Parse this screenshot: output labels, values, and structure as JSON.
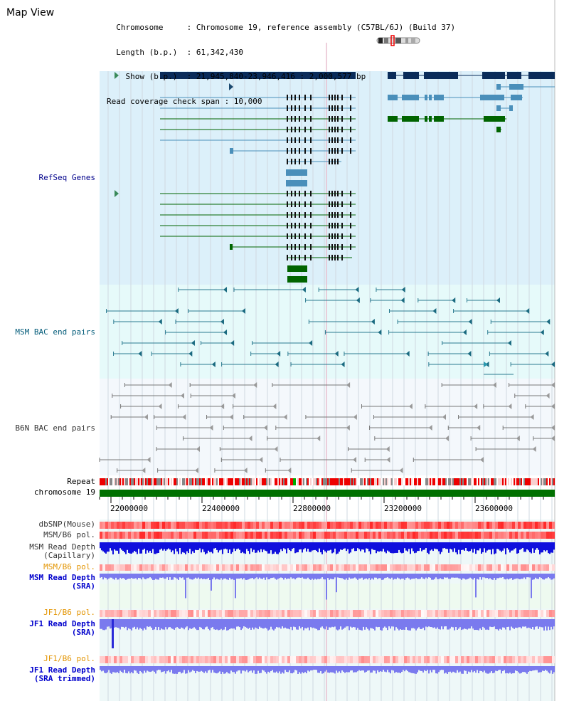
{
  "header": {
    "title": "Map View",
    "info_lines": [
      "  Chromosome     : Chromosome 19, reference assembly (C57BL/6J) (Build 37)",
      "  Length (b.p.)  : 61,342,430",
      "    Show (b.p.)  : 21,945,840-23,946,416 : 2,000,577 bp",
      "Read coverage check span : 10,000"
    ]
  },
  "tracks": {
    "refseq": "RefSeq Genes",
    "msm_bac": "MSM BAC end pairs",
    "b6n_bac": "B6N BAC end pairs",
    "repeat": "Repeat",
    "chromosome": "chromosome 19",
    "dbsnp": "dbSNP(Mouse)",
    "msm_b6_pol_1": "MSM/B6 pol.",
    "msm_depth_cap_1": "MSM Read Depth",
    "msm_depth_cap_2": "(Capillary)",
    "msm_b6_pol_2": "MSM/B6 pol.",
    "msm_depth_sra_1": "MSM Read Depth",
    "msm_depth_sra_2": "(SRA)",
    "jf1_b6_pol_1": "JF1/B6 pol.",
    "jf1_depth_sra_1": "JF1 Read Depth",
    "jf1_depth_sra_2": "(SRA)",
    "jf1_b6_pol_2": "JF1/B6 pol.",
    "jf1_depth_trim_1": "JF1 Read Depth",
    "jf1_depth_trim_2": "(SRA trimmed)"
  },
  "axis": {
    "ticks": [
      "22000000",
      "22400000",
      "22800000",
      "23200000",
      "23600000"
    ]
  },
  "colors": {
    "refseq_bg": "#dcf0fa",
    "bac_bg": "#e6fafa",
    "dark_gene": "#0a2c5a",
    "blue_gene": "#4a8fba",
    "green_gene": "#006400",
    "chrom_bar": "#007000",
    "depth_dark": "#1010dd",
    "depth_light": "#7a7aee"
  }
}
